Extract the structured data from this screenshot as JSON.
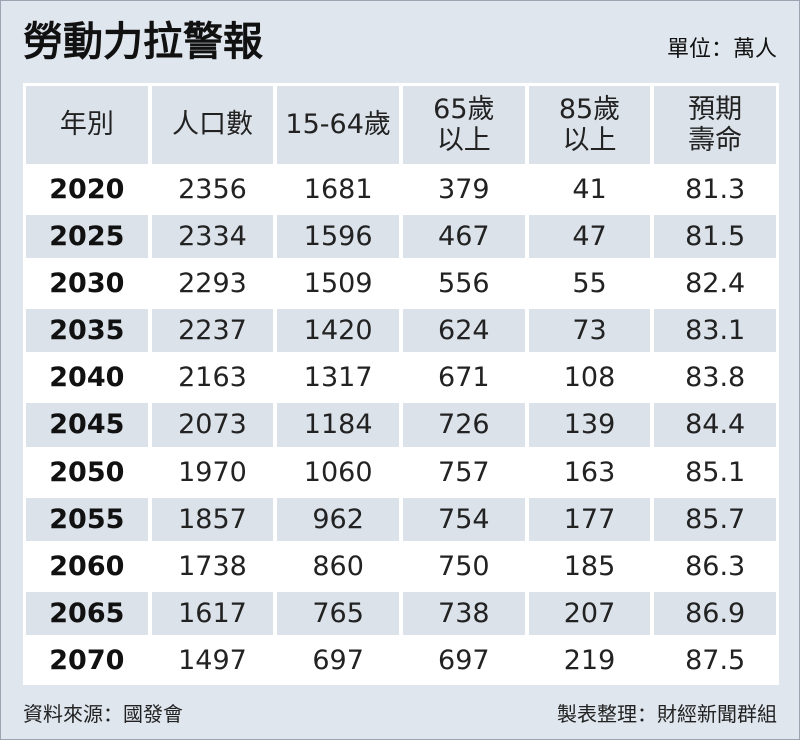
{
  "header": {
    "title": "勞動力拉警報",
    "unit": "單位：萬人"
  },
  "table": {
    "columns": [
      [
        "年別"
      ],
      [
        "人口數"
      ],
      [
        "15-64歲"
      ],
      [
        "65歲",
        "以上"
      ],
      [
        "85歲",
        "以上"
      ],
      [
        "預期",
        "壽命"
      ]
    ],
    "rows": [
      [
        2020,
        2356,
        1681,
        379,
        41,
        81.3
      ],
      [
        2025,
        2334,
        1596,
        467,
        47,
        81.5
      ],
      [
        2030,
        2293,
        1509,
        556,
        55,
        82.4
      ],
      [
        2035,
        2237,
        1420,
        624,
        73,
        83.1
      ],
      [
        2040,
        2163,
        1317,
        671,
        108,
        83.8
      ],
      [
        2045,
        2073,
        1184,
        726,
        139,
        84.4
      ],
      [
        2050,
        1970,
        1060,
        757,
        163,
        85.1
      ],
      [
        2055,
        1857,
        962,
        754,
        177,
        85.7
      ],
      [
        2060,
        1738,
        860,
        750,
        185,
        86.3
      ],
      [
        2065,
        1617,
        765,
        738,
        207,
        86.9
      ],
      [
        2070,
        1497,
        697,
        697,
        219,
        87.5
      ]
    ]
  },
  "footer": {
    "source": "資料來源：國發會",
    "credit": "製表整理：財經新聞群組"
  }
}
